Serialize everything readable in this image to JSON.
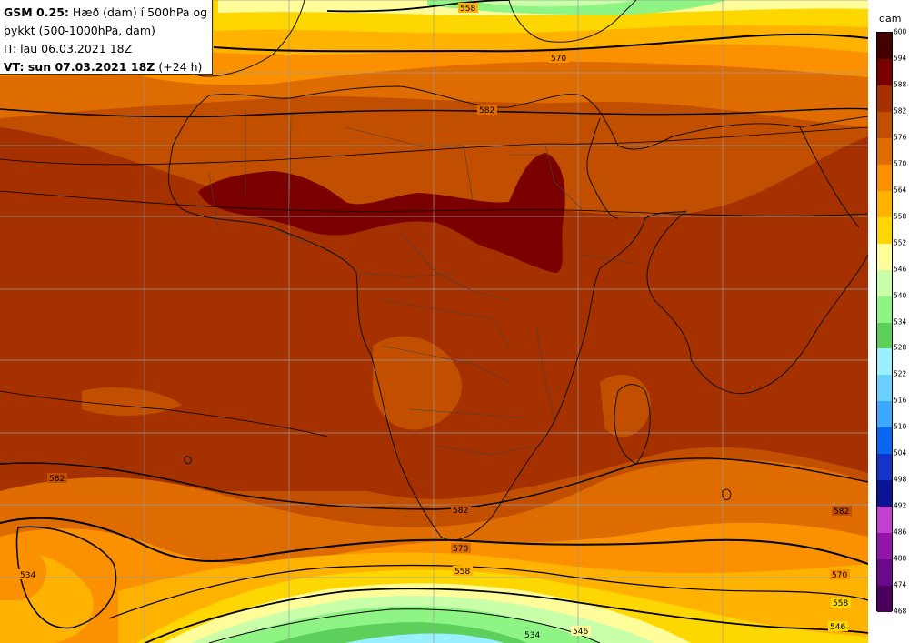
{
  "info": {
    "model": "GSM 0.25:",
    "desc_line1": "Hæð (dam) í 500hPa og",
    "desc_line2": "þykkt (500-1000hPa, dam)",
    "it_line": "IT: lau 06.03.2021 18Z",
    "vt_bold": "VT: sun 07.03.2021 18Z",
    "vt_suffix": "(+24 h)"
  },
  "legend": {
    "unit": "dam",
    "ticks": [
      "600",
      "594",
      "588",
      "582",
      "576",
      "570",
      "564",
      "558",
      "552",
      "546",
      "540",
      "534",
      "528",
      "522",
      "516",
      "510",
      "504",
      "498",
      "492",
      "486",
      "480",
      "474",
      "468"
    ],
    "colors": [
      "#1e0000",
      "#420000",
      "#7a0000",
      "#a53000",
      "#c24e00",
      "#de6c00",
      "#fb9000",
      "#ffb300",
      "#ffd700",
      "#fffd9a",
      "#c8ffa8",
      "#8ef585",
      "#5dd05c",
      "#9bf0ff",
      "#6ad1ff",
      "#3ca8ff",
      "#0a66f0",
      "#1633c8",
      "#0b1494",
      "#c040d0",
      "#9215a8",
      "#6a0a88",
      "#4a005c"
    ]
  },
  "contour_labels": {
    "c558_top": "558",
    "c570_top": "570",
    "c582_north": "582",
    "c582_west": "582",
    "c582_south": "582",
    "c582_east": "582",
    "c570_south": "570",
    "c570_east": "570",
    "c558_south": "558",
    "c558_east": "558",
    "c546_south": "546",
    "c546_east": "546",
    "c534_south": "534",
    "c534_west": "534"
  },
  "map_colors": {
    "c546": "#fffd9a",
    "c552": "#ffd700",
    "c558": "#ffb300",
    "c564": "#fb9000",
    "c570": "#de6c00",
    "c576": "#c24e00",
    "c582": "#a53000",
    "c588": "#7a0000",
    "c540": "#c8ffa8",
    "c534": "#8ef585",
    "c528": "#5dd05c",
    "c522": "#9bf0ff"
  }
}
